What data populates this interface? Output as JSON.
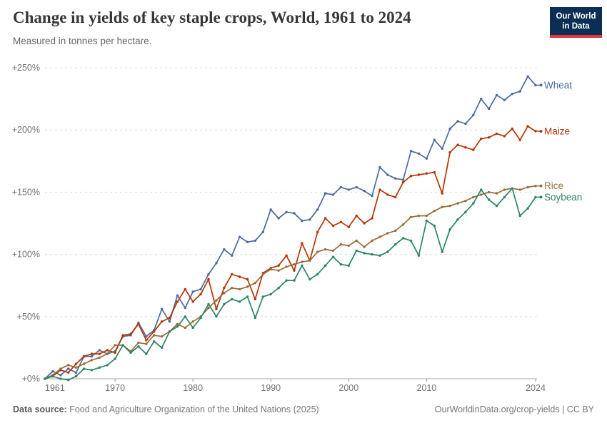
{
  "header": {
    "title": "Change in yields of key staple crops, World, 1961 to 2024",
    "subtitle": "Measured in tonnes per hectare.",
    "logo": {
      "line1": "Our World",
      "line2": "in Data",
      "bg": "#0C2E55",
      "accent": "#E0373F"
    }
  },
  "footer": {
    "source_label": "Data source:",
    "source_text": " Food and Agriculture Organization of the United Nations (2025)",
    "right_text": "OurWorldinData.org/crop-yields | CC BY"
  },
  "chart_data": {
    "type": "line",
    "title": "Change in yields of key staple crops, World, 1961 to 2024",
    "unit": "% change since 1961",
    "x_start": 1961,
    "x_end": 2024,
    "x_ticks": [
      1961,
      1970,
      1980,
      1990,
      2000,
      2010,
      2024
    ],
    "y_gridlines": [
      0,
      50,
      100,
      150,
      200,
      250
    ],
    "y_tick_labels": [
      "+0%",
      "+50%",
      "+100%",
      "+150%",
      "+200%",
      "+250%"
    ],
    "ylim": [
      0,
      250
    ],
    "grid": "horizontal-dashed",
    "legend_position": "right-of-line-labels",
    "axis_text_color": "#737373",
    "grid_color": "#dcdcdc",
    "baseline_color": "#a8a8a8",
    "series": [
      {
        "name": "Wheat",
        "color": "#4C6A9C",
        "values": [
          0,
          6,
          3,
          8,
          5,
          18,
          18,
          23,
          20,
          22,
          34,
          35,
          45,
          34,
          39,
          56,
          46,
          67,
          57,
          70,
          72,
          84,
          93,
          104,
          99,
          114,
          110,
          111,
          118,
          136,
          129,
          134,
          133,
          127,
          128,
          136,
          149,
          148,
          154,
          152,
          154,
          151,
          147,
          170,
          164,
          161,
          160,
          183,
          181,
          177,
          192,
          185,
          201,
          207,
          205,
          212,
          225,
          217,
          228,
          224,
          229,
          231,
          243,
          236
        ]
      },
      {
        "name": "Maize",
        "color": "#B13507",
        "values": [
          0,
          2,
          7,
          5,
          12,
          18,
          20,
          20,
          23,
          21,
          35,
          36,
          44,
          31,
          38,
          46,
          49,
          62,
          72,
          62,
          68,
          80,
          56,
          73,
          84,
          82,
          80,
          64,
          85,
          89,
          91,
          99,
          87,
          109,
          95,
          118,
          129,
          123,
          126,
          122,
          131,
          125,
          129,
          152,
          148,
          146,
          158,
          163,
          164,
          165,
          166,
          149,
          182,
          188,
          186,
          184,
          193,
          194,
          197,
          195,
          201,
          192,
          203,
          199
        ]
      },
      {
        "name": "Rice",
        "color": "#996D39",
        "values": [
          0,
          3,
          8,
          11,
          9,
          12,
          15,
          17,
          20,
          27,
          27,
          22,
          29,
          28,
          35,
          34,
          38,
          44,
          41,
          46,
          50,
          57,
          63,
          69,
          73,
          72,
          74,
          77,
          84,
          88,
          87,
          90,
          92,
          94,
          95,
          102,
          104,
          103,
          108,
          107,
          111,
          106,
          111,
          114,
          117,
          119,
          124,
          130,
          131,
          131,
          135,
          138,
          139,
          141,
          143,
          146,
          148,
          150,
          149,
          152,
          153,
          152,
          154,
          155
        ]
      },
      {
        "name": "Soybean",
        "color": "#2C8465",
        "values": [
          0,
          2,
          0,
          -1,
          2,
          8,
          7,
          9,
          11,
          16,
          27,
          21,
          26,
          20,
          30,
          25,
          38,
          42,
          50,
          41,
          49,
          60,
          50,
          60,
          64,
          62,
          66,
          49,
          66,
          68,
          73,
          79,
          79,
          91,
          80,
          84,
          91,
          98,
          92,
          91,
          103,
          101,
          100,
          99,
          102,
          108,
          113,
          111,
          99,
          127,
          123,
          102,
          120,
          128,
          134,
          141,
          152,
          144,
          139,
          146,
          153,
          131,
          137,
          146
        ]
      }
    ]
  }
}
